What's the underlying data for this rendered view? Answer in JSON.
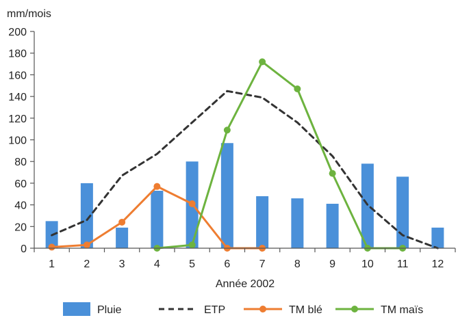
{
  "chart_data": {
    "type": "bar",
    "title": "",
    "ylabel": "mm/mois",
    "xlabel": "Année 2002",
    "ylim": [
      0,
      200
    ],
    "yticks": [
      0,
      20,
      40,
      60,
      80,
      100,
      120,
      140,
      160,
      180,
      200
    ],
    "categories": [
      "1",
      "2",
      "3",
      "4",
      "5",
      "6",
      "7",
      "8",
      "9",
      "10",
      "11",
      "12"
    ],
    "grid": false,
    "legend_position": "bottom",
    "series": [
      {
        "name": "Pluie",
        "kind": "bar",
        "color": "#4a90d9",
        "values": [
          25,
          60,
          19,
          53,
          80,
          97,
          48,
          46,
          41,
          78,
          66,
          19
        ]
      },
      {
        "name": "ETP",
        "kind": "line-dashed",
        "color": "#333333",
        "values": [
          12,
          26,
          67,
          87,
          116,
          145,
          139,
          116,
          85,
          40,
          12,
          0
        ]
      },
      {
        "name": "TM blé",
        "kind": "line-markers",
        "color": "#ee7d31",
        "values": [
          1,
          3,
          24,
          57,
          41,
          0,
          0,
          null,
          null,
          null,
          null,
          null
        ]
      },
      {
        "name": "TM maïs",
        "kind": "line-markers",
        "color": "#6db33f",
        "values": [
          null,
          null,
          null,
          0,
          3,
          109,
          172,
          147,
          69,
          0,
          0,
          null
        ]
      }
    ]
  }
}
